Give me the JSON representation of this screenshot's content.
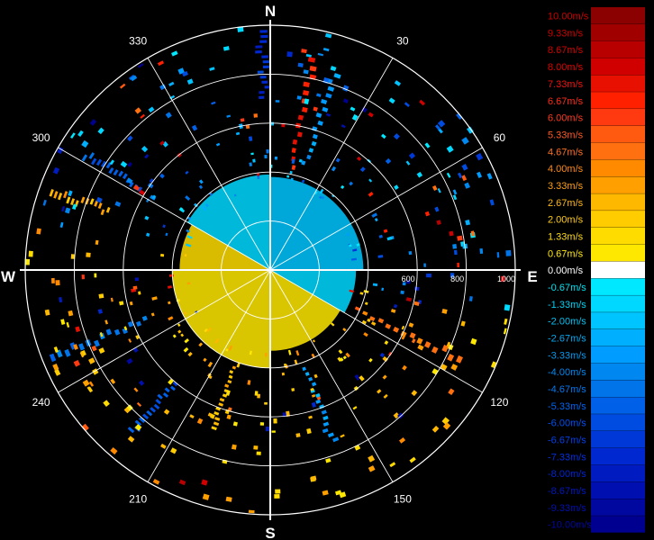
{
  "chart_data": {
    "type": "polar-radial-velocity",
    "compass": {
      "north": "N",
      "east": "E",
      "south": "S",
      "west": "W"
    },
    "azimuth_labels": [
      {
        "deg": 30,
        "text": "30"
      },
      {
        "deg": 60,
        "text": "60"
      },
      {
        "deg": 120,
        "text": "120"
      },
      {
        "deg": 150,
        "text": "150"
      },
      {
        "deg": 210,
        "text": "210"
      },
      {
        "deg": 240,
        "text": "240"
      },
      {
        "deg": 300,
        "text": "300"
      },
      {
        "deg": 330,
        "text": "330"
      }
    ],
    "range_ticks": [
      {
        "value": 600,
        "text": "600"
      },
      {
        "value": 800,
        "text": "800"
      },
      {
        "value": 1000,
        "text": "1000"
      }
    ],
    "range_rings": [
      200,
      400,
      600,
      800,
      1000
    ],
    "range_max": 1000,
    "legend": [
      {
        "label": "10.00m/s",
        "color": "#8b0000",
        "text_color": "#cc0000"
      },
      {
        "label": "9.33m/s",
        "color": "#a00000",
        "text_color": "#cc0000"
      },
      {
        "label": "8.67m/s",
        "color": "#b80000",
        "text_color": "#d40000"
      },
      {
        "label": "8.00m/s",
        "color": "#d00000",
        "text_color": "#e00000"
      },
      {
        "label": "7.33m/s",
        "color": "#e81000",
        "text_color": "#f01010"
      },
      {
        "label": "6.67m/s",
        "color": "#ff2000",
        "text_color": "#ff2a1a"
      },
      {
        "label": "6.00m/s",
        "color": "#ff3a10",
        "text_color": "#ff3a20"
      },
      {
        "label": "5.33m/s",
        "color": "#ff5a10",
        "text_color": "#ff5a20"
      },
      {
        "label": "4.67m/s",
        "color": "#ff7010",
        "text_color": "#ff7020"
      },
      {
        "label": "4.00m/s",
        "color": "#ff8a00",
        "text_color": "#ff8a10"
      },
      {
        "label": "3.33m/s",
        "color": "#ffa000",
        "text_color": "#ffa010"
      },
      {
        "label": "2.67m/s",
        "color": "#ffb800",
        "text_color": "#ffb810"
      },
      {
        "label": "2.00m/s",
        "color": "#ffcc00",
        "text_color": "#ffcc10"
      },
      {
        "label": "1.33m/s",
        "color": "#ffdc00",
        "text_color": "#ffdc10"
      },
      {
        "label": "0.67m/s",
        "color": "#ffe800",
        "text_color": "#ffe810"
      },
      {
        "label": "0.00m/s",
        "color": "#ffffff",
        "text_color": "#ffffff"
      },
      {
        "label": "-0.67m/s",
        "color": "#00e8ff",
        "text_color": "#00e0f0"
      },
      {
        "label": "-1.33m/s",
        "color": "#00d8ff",
        "text_color": "#00d0f0"
      },
      {
        "label": "-2.00m/s",
        "color": "#00c4ff",
        "text_color": "#00c0f0"
      },
      {
        "label": "-2.67m/s",
        "color": "#00b0ff",
        "text_color": "#00a8f0"
      },
      {
        "label": "-3.33m/s",
        "color": "#009cff",
        "text_color": "#0098f0"
      },
      {
        "label": "-4.00m/s",
        "color": "#0088f0",
        "text_color": "#0088f0"
      },
      {
        "label": "-4.67m/s",
        "color": "#0074e8",
        "text_color": "#0078f0"
      },
      {
        "label": "-5.33m/s",
        "color": "#0060e8",
        "text_color": "#0064f0"
      },
      {
        "label": "-6.00m/s",
        "color": "#004ce0",
        "text_color": "#0050f0"
      },
      {
        "label": "-6.67m/s",
        "color": "#0038d8",
        "text_color": "#0040e8"
      },
      {
        "label": "-7.33m/s",
        "color": "#0028d0",
        "text_color": "#0030e0"
      },
      {
        "label": "-8.00m/s",
        "color": "#001cc0",
        "text_color": "#0024d0"
      },
      {
        "label": "-8.67m/s",
        "color": "#0010b0",
        "text_color": "#0018c0"
      },
      {
        "label": "-9.33m/s",
        "color": "#0008a0",
        "text_color": "#0010b0"
      },
      {
        "label": "-10.00m/s",
        "color": "#000090",
        "text_color": "#0008a0"
      }
    ],
    "sectors": [
      {
        "from": 0,
        "to": 90,
        "r_min": 0,
        "r_max": 380,
        "value": -1.8
      },
      {
        "from": 90,
        "to": 120,
        "r_min": 0,
        "r_max": 350,
        "value": -1.5
      },
      {
        "from": 120,
        "to": 180,
        "r_min": 0,
        "r_max": 330,
        "value": 1.0
      },
      {
        "from": 180,
        "to": 270,
        "r_min": 0,
        "r_max": 400,
        "value": 1.0
      },
      {
        "from": 270,
        "to": 300,
        "r_min": 0,
        "r_max": 370,
        "value": 1.2
      },
      {
        "from": 300,
        "to": 360,
        "r_min": 0,
        "r_max": 390,
        "value": -1.6
      }
    ],
    "streaks": [
      {
        "az": 115,
        "r_min": 380,
        "r_max": 880,
        "value": 4.5
      },
      {
        "az": 248,
        "r_min": 540,
        "r_max": 980,
        "value": -4.5
      },
      {
        "az": 302,
        "r_min": 620,
        "r_max": 900,
        "value": -5.5
      },
      {
        "az": 358,
        "r_min": 700,
        "r_max": 990,
        "value": -7.0
      },
      {
        "az": 12,
        "r_min": 420,
        "r_max": 900,
        "value": 6.5
      },
      {
        "az": 18,
        "r_min": 450,
        "r_max": 860,
        "value": -3.5
      },
      {
        "az": 200,
        "r_min": 420,
        "r_max": 700,
        "value": 2.5
      },
      {
        "az": 290,
        "r_min": 700,
        "r_max": 960,
        "value": 3.0
      },
      {
        "az": 160,
        "r_min": 420,
        "r_max": 760,
        "value": -3.0
      },
      {
        "az": 220,
        "r_min": 600,
        "r_max": 880,
        "value": -6.0
      }
    ],
    "grid": true
  }
}
